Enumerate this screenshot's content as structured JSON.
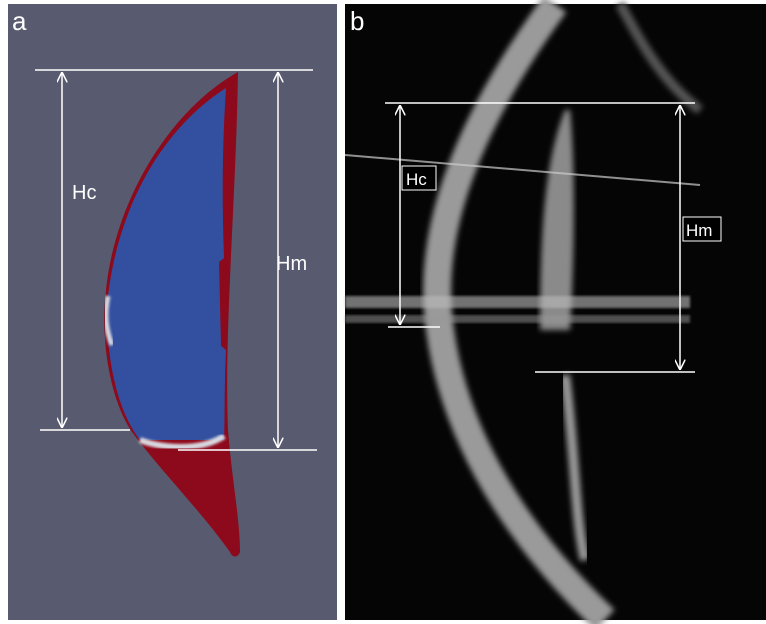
{
  "panels": [
    {
      "letter": "a",
      "labels": [
        "Hc",
        "Hm"
      ]
    },
    {
      "letter": "b",
      "labels": [
        "Hc",
        "Hm"
      ]
    }
  ]
}
